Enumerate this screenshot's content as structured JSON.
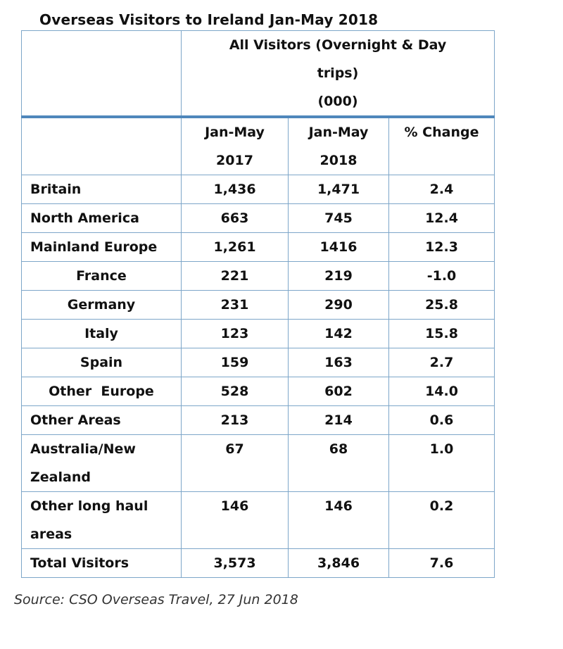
{
  "title": "Overseas Visitors to Ireland Jan-May 2018",
  "header": {
    "group_line1": "All Visitors (Overnight & Day",
    "group_line2": "trips)",
    "group_line3": "(000)",
    "col1_line1": "Jan-May",
    "col1_line2": "2017",
    "col2_line1": "Jan-May",
    "col2_line2": "2018",
    "col3": "% Change"
  },
  "rows": [
    {
      "label": "Britain",
      "v2017": "1,436",
      "v2018": "1,471",
      "change": "2.4"
    },
    {
      "label": "North America",
      "v2017": "663",
      "v2018": "745",
      "change": "12.4"
    },
    {
      "label": "Mainland Europe",
      "v2017": "1,261",
      "v2018": "1416",
      "change": "12.3"
    },
    {
      "label": "France",
      "v2017": "221",
      "v2018": "219",
      "change": "-1.0"
    },
    {
      "label": "Germany",
      "v2017": "231",
      "v2018": "290",
      "change": "25.8"
    },
    {
      "label": "Italy",
      "v2017": "123",
      "v2018": "142",
      "change": "15.8"
    },
    {
      "label": "Spain",
      "v2017": "159",
      "v2018": "163",
      "change": "2.7"
    },
    {
      "label": "Other  Europe",
      "v2017": "528",
      "v2018": "602",
      "change": "14.0"
    },
    {
      "label": "Other Areas",
      "v2017": "213",
      "v2018": "214",
      "change": "0.6"
    },
    {
      "label": "Australia/New Zealand",
      "v2017": "67",
      "v2018": "68",
      "change": "1.0"
    },
    {
      "label": "Other long haul areas",
      "v2017": "146",
      "v2018": "146",
      "change": "0.2"
    },
    {
      "label": "Total Visitors",
      "v2017": "3,573",
      "v2018": "3,846",
      "change": "7.6"
    }
  ],
  "source": "Source: CSO Overseas Travel, 27 Jun 2018",
  "colors": {
    "border": "#7da6c9",
    "header_rule": "#4f87bb"
  }
}
